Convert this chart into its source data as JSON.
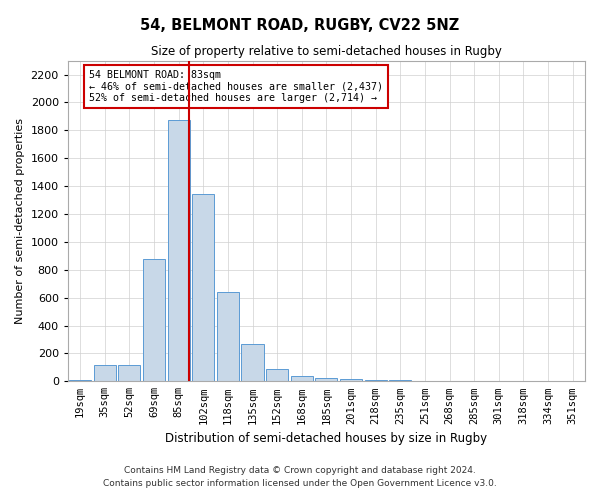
{
  "title": "54, BELMONT ROAD, RUGBY, CV22 5NZ",
  "subtitle": "Size of property relative to semi-detached houses in Rugby",
  "xlabel": "Distribution of semi-detached houses by size in Rugby",
  "ylabel": "Number of semi-detached properties",
  "footnote1": "Contains HM Land Registry data © Crown copyright and database right 2024.",
  "footnote2": "Contains public sector information licensed under the Open Government Licence v3.0.",
  "property_label": "54 BELMONT ROAD: 83sqm",
  "annotation_smaller": "← 46% of semi-detached houses are smaller (2,437)",
  "annotation_larger": "52% of semi-detached houses are larger (2,714) →",
  "bar_color": "#c8d8e8",
  "bar_edge_color": "#5b9bd5",
  "vline_color": "#cc0000",
  "annotation_box_color": "#cc0000",
  "grid_color": "#d0d0d0",
  "categories": [
    "19sqm",
    "35sqm",
    "52sqm",
    "69sqm",
    "85sqm",
    "102sqm",
    "118sqm",
    "135sqm",
    "152sqm",
    "168sqm",
    "185sqm",
    "201sqm",
    "218sqm",
    "235sqm",
    "251sqm",
    "268sqm",
    "285sqm",
    "301sqm",
    "318sqm",
    "334sqm",
    "351sqm"
  ],
  "values": [
    10,
    120,
    120,
    880,
    1875,
    1340,
    640,
    270,
    90,
    40,
    25,
    18,
    12,
    8,
    5,
    5,
    3,
    2,
    3,
    2,
    3
  ],
  "ylim": [
    0,
    2300
  ],
  "yticks": [
    0,
    200,
    400,
    600,
    800,
    1000,
    1200,
    1400,
    1600,
    1800,
    2000,
    2200
  ],
  "vline_position": 4.42,
  "figsize": [
    6.0,
    5.0
  ],
  "dpi": 100
}
